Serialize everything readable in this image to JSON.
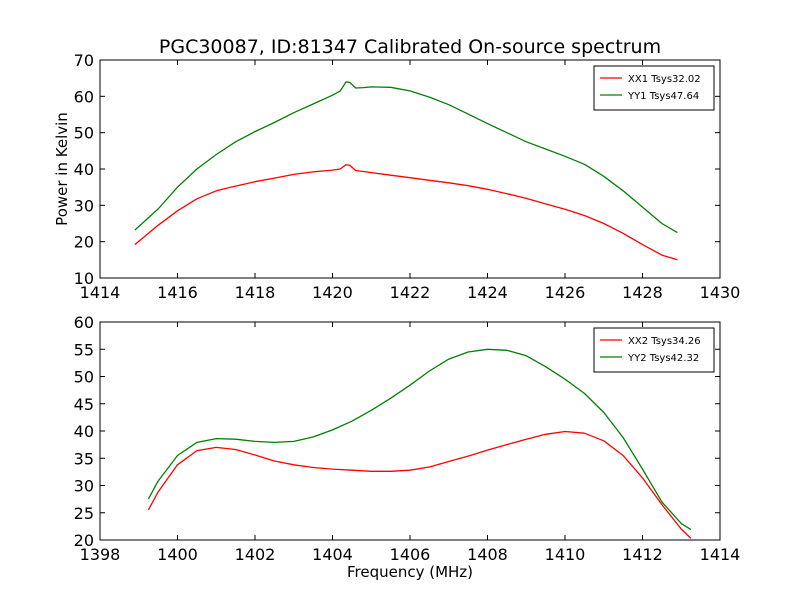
{
  "figure": {
    "title": "PGC30087, ID:81347 Calibrated On-source spectrum",
    "shared_ylabel": "Power in Kelvin",
    "shared_xlabel": "Frequency (MHz)"
  },
  "chart_data": [
    {
      "type": "line",
      "title": "PGC30087, ID:81347 Calibrated On-source spectrum",
      "xlabel": "",
      "ylabel": "Power in Kelvin",
      "xlim": [
        1414,
        1430
      ],
      "ylim": [
        10,
        70
      ],
      "xticks": [
        1414,
        1416,
        1418,
        1420,
        1422,
        1424,
        1426,
        1428,
        1430
      ],
      "yticks": [
        10,
        20,
        30,
        40,
        50,
        60,
        70
      ],
      "grid": false,
      "legend": "top-right",
      "series": [
        {
          "name": "XX1 Tsys32.02",
          "color": "#ff0000",
          "x": [
            1414.9,
            1415.5,
            1416.0,
            1416.5,
            1417.0,
            1417.5,
            1418.0,
            1418.5,
            1419.0,
            1419.5,
            1420.0,
            1420.2,
            1420.35,
            1420.45,
            1420.6,
            1420.8,
            1421.0,
            1421.5,
            1422.0,
            1422.5,
            1423.0,
            1423.5,
            1424.0,
            1424.5,
            1425.0,
            1425.5,
            1426.0,
            1426.5,
            1427.0,
            1427.5,
            1428.0,
            1428.5,
            1428.9
          ],
          "y": [
            19.2,
            24.5,
            28.5,
            31.8,
            34.0,
            35.3,
            36.5,
            37.5,
            38.5,
            39.2,
            39.7,
            40.0,
            41.2,
            41.0,
            39.6,
            39.3,
            39.0,
            38.3,
            37.6,
            36.9,
            36.2,
            35.4,
            34.4,
            33.2,
            31.9,
            30.4,
            28.9,
            27.2,
            25.0,
            22.3,
            19.2,
            16.3,
            15.0
          ]
        },
        {
          "name": "YY1 Tsys47.64",
          "color": "#008000",
          "x": [
            1414.9,
            1415.5,
            1416.0,
            1416.5,
            1417.0,
            1417.5,
            1418.0,
            1418.5,
            1419.0,
            1419.5,
            1420.0,
            1420.2,
            1420.35,
            1420.45,
            1420.6,
            1420.8,
            1421.0,
            1421.5,
            1422.0,
            1422.5,
            1423.0,
            1423.5,
            1424.0,
            1424.5,
            1425.0,
            1425.5,
            1426.0,
            1426.5,
            1427.0,
            1427.5,
            1428.0,
            1428.5,
            1428.9
          ],
          "y": [
            23.2,
            29.0,
            35.0,
            40.0,
            44.0,
            47.5,
            50.3,
            52.8,
            55.5,
            57.9,
            60.3,
            61.5,
            64.0,
            63.8,
            62.3,
            62.4,
            62.6,
            62.5,
            61.5,
            59.8,
            57.7,
            55.1,
            52.5,
            50.0,
            47.5,
            45.5,
            43.5,
            41.3,
            38.0,
            34.0,
            29.5,
            25.0,
            22.5
          ]
        }
      ]
    },
    {
      "type": "line",
      "title": "",
      "xlabel": "Frequency (MHz)",
      "ylabel": "",
      "xlim": [
        1398,
        1414
      ],
      "ylim": [
        20,
        60
      ],
      "xticks": [
        1398,
        1400,
        1402,
        1404,
        1406,
        1408,
        1410,
        1412,
        1414
      ],
      "yticks": [
        20,
        25,
        30,
        35,
        40,
        45,
        50,
        55,
        60
      ],
      "grid": false,
      "legend": "top-right",
      "series": [
        {
          "name": "XX2 Tsys34.26",
          "color": "#ff0000",
          "x": [
            1399.25,
            1399.5,
            1400.0,
            1400.5,
            1401.0,
            1401.5,
            1402.0,
            1402.5,
            1403.0,
            1403.5,
            1404.0,
            1404.5,
            1405.0,
            1405.5,
            1406.0,
            1406.5,
            1407.0,
            1407.5,
            1408.0,
            1408.5,
            1409.0,
            1409.5,
            1410.0,
            1410.5,
            1411.0,
            1411.5,
            1412.0,
            1412.5,
            1413.0,
            1413.25
          ],
          "y": [
            25.5,
            28.8,
            33.8,
            36.4,
            37.0,
            36.6,
            35.6,
            34.5,
            33.8,
            33.3,
            33.0,
            32.8,
            32.6,
            32.6,
            32.8,
            33.4,
            34.4,
            35.4,
            36.5,
            37.5,
            38.5,
            39.4,
            39.9,
            39.6,
            38.2,
            35.5,
            31.4,
            26.5,
            22.0,
            20.3
          ]
        },
        {
          "name": "YY2 Tsys42.32",
          "color": "#008000",
          "x": [
            1399.25,
            1399.5,
            1400.0,
            1400.5,
            1401.0,
            1401.5,
            1402.0,
            1402.5,
            1403.0,
            1403.5,
            1404.0,
            1404.5,
            1405.0,
            1405.5,
            1406.0,
            1406.5,
            1407.0,
            1407.5,
            1408.0,
            1408.5,
            1409.0,
            1409.5,
            1410.0,
            1410.5,
            1411.0,
            1411.5,
            1412.0,
            1412.5,
            1413.0,
            1413.25
          ],
          "y": [
            27.5,
            30.8,
            35.5,
            37.9,
            38.6,
            38.5,
            38.1,
            37.9,
            38.1,
            38.9,
            40.2,
            41.8,
            43.8,
            46.0,
            48.4,
            51.0,
            53.2,
            54.5,
            55.0,
            54.8,
            53.8,
            51.8,
            49.5,
            46.9,
            43.4,
            38.8,
            33.0,
            27.0,
            23.0,
            21.9
          ]
        }
      ]
    }
  ]
}
